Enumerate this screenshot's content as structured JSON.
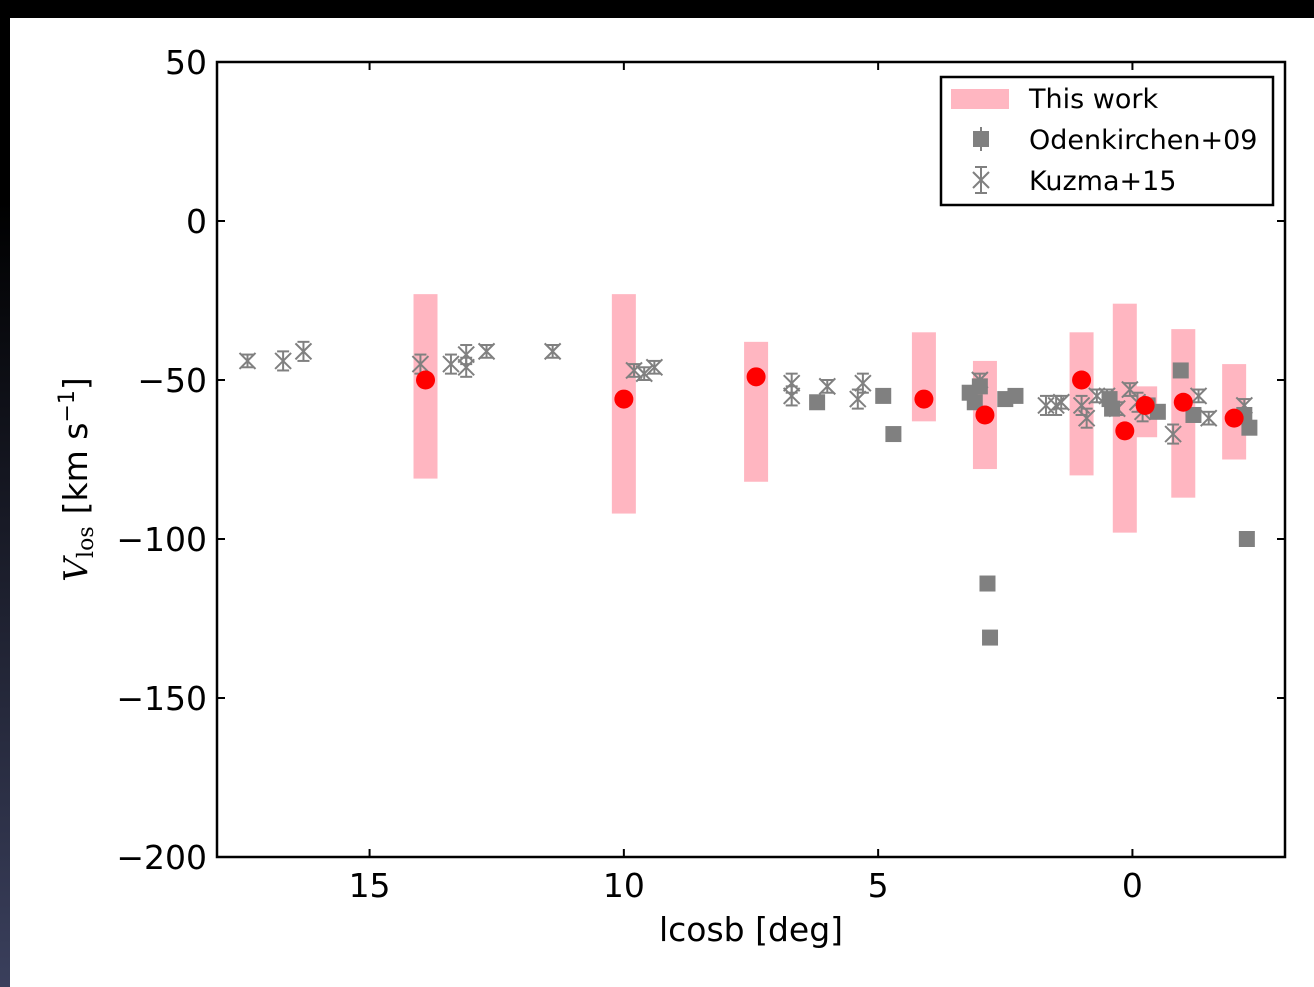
{
  "chart_data": {
    "type": "scatter",
    "title": "",
    "xlabel": "lcosb [deg]",
    "ylabel_main": "V",
    "ylabel_sub": "los",
    "ylabel_units": "[km s",
    "ylabel_exp": "−1",
    "ylabel_close": "]",
    "xlim": [
      18,
      -3
    ],
    "ylim": [
      -200,
      50
    ],
    "x_ticks": [
      {
        "value": 15,
        "label": "15"
      },
      {
        "value": 10,
        "label": "10"
      },
      {
        "value": 5,
        "label": "5"
      },
      {
        "value": 0,
        "label": "0"
      }
    ],
    "y_ticks": [
      {
        "value": 50,
        "label": "50"
      },
      {
        "value": 0,
        "label": "0"
      },
      {
        "value": -50,
        "label": "−50"
      },
      {
        "value": -100,
        "label": "−100"
      },
      {
        "value": -150,
        "label": "−150"
      },
      {
        "value": -200,
        "label": "−200"
      }
    ],
    "grid": false,
    "legend_position": "top-right",
    "legend": [
      {
        "label": "This work",
        "marker": "band",
        "color": "#ffb6c1"
      },
      {
        "label": "Odenkirchen+09",
        "marker": "square",
        "color": "#808080"
      },
      {
        "label": "Kuzma+15",
        "marker": "x-errorbar",
        "color": "#808080"
      }
    ],
    "series": [
      {
        "name": "This work",
        "marker": "circle-band",
        "color": "#ff0000",
        "band_color": "#ffb6c1",
        "points": [
          {
            "x": 13.9,
            "y": -50,
            "lo": -81,
            "hi": -23
          },
          {
            "x": 10.0,
            "y": -56,
            "lo": -92,
            "hi": -23
          },
          {
            "x": 7.4,
            "y": -49,
            "lo": -82,
            "hi": -38
          },
          {
            "x": 4.1,
            "y": -56,
            "lo": -63,
            "hi": -35
          },
          {
            "x": 2.9,
            "y": -61,
            "lo": -78,
            "hi": -44
          },
          {
            "x": 1.0,
            "y": -50,
            "lo": -80,
            "hi": -35
          },
          {
            "x": 0.15,
            "y": -66,
            "lo": -98,
            "hi": -26
          },
          {
            "x": -0.25,
            "y": -58,
            "lo": -68,
            "hi": -52
          },
          {
            "x": -1.0,
            "y": -57,
            "lo": -87,
            "hi": -34
          },
          {
            "x": -2.0,
            "y": -62,
            "lo": -75,
            "hi": -45
          }
        ]
      },
      {
        "name": "Odenkirchen+09",
        "marker": "square",
        "color": "#808080",
        "points": [
          {
            "x": 6.2,
            "y": -57
          },
          {
            "x": 4.9,
            "y": -55
          },
          {
            "x": 4.7,
            "y": -67
          },
          {
            "x": 3.2,
            "y": -54
          },
          {
            "x": 3.1,
            "y": -57
          },
          {
            "x": 3.0,
            "y": -52
          },
          {
            "x": 2.85,
            "y": -114
          },
          {
            "x": 2.8,
            "y": -131
          },
          {
            "x": 2.5,
            "y": -56
          },
          {
            "x": 2.3,
            "y": -55
          },
          {
            "x": 0.45,
            "y": -56
          },
          {
            "x": 0.4,
            "y": -59
          },
          {
            "x": -0.3,
            "y": -58
          },
          {
            "x": -0.5,
            "y": -60
          },
          {
            "x": -0.95,
            "y": -47
          },
          {
            "x": -1.2,
            "y": -61
          },
          {
            "x": -2.2,
            "y": -61
          },
          {
            "x": -2.3,
            "y": -65
          },
          {
            "x": -2.25,
            "y": -100
          }
        ]
      },
      {
        "name": "Kuzma+15",
        "marker": "x-errorbar",
        "color": "#808080",
        "points": [
          {
            "x": 17.4,
            "y": -44,
            "err": 2
          },
          {
            "x": 16.7,
            "y": -44,
            "err": 3
          },
          {
            "x": 16.3,
            "y": -41,
            "err": 3
          },
          {
            "x": 14.0,
            "y": -45,
            "err": 3
          },
          {
            "x": 13.4,
            "y": -45,
            "err": 3
          },
          {
            "x": 13.1,
            "y": -42,
            "err": 3
          },
          {
            "x": 13.1,
            "y": -46,
            "err": 3
          },
          {
            "x": 12.7,
            "y": -41,
            "err": 2
          },
          {
            "x": 11.4,
            "y": -41,
            "err": 2
          },
          {
            "x": 9.8,
            "y": -47,
            "err": 2
          },
          {
            "x": 9.6,
            "y": -48,
            "err": 2
          },
          {
            "x": 9.4,
            "y": -46,
            "err": 2
          },
          {
            "x": 6.7,
            "y": -51,
            "err": 3
          },
          {
            "x": 6.7,
            "y": -55,
            "err": 3
          },
          {
            "x": 6.0,
            "y": -52,
            "err": 2
          },
          {
            "x": 5.4,
            "y": -56,
            "err": 3
          },
          {
            "x": 5.3,
            "y": -51,
            "err": 3
          },
          {
            "x": 3.0,
            "y": -50,
            "err": 2
          },
          {
            "x": 1.7,
            "y": -58,
            "err": 3
          },
          {
            "x": 1.5,
            "y": -58,
            "err": 3
          },
          {
            "x": 1.4,
            "y": -57,
            "err": 2
          },
          {
            "x": 1.0,
            "y": -58,
            "err": 3
          },
          {
            "x": 0.9,
            "y": -62,
            "err": 3
          },
          {
            "x": 0.7,
            "y": -55,
            "err": 2
          },
          {
            "x": 0.5,
            "y": -55,
            "err": 2
          },
          {
            "x": 0.3,
            "y": -59,
            "err": 2
          },
          {
            "x": 0.05,
            "y": -53,
            "err": 2
          },
          {
            "x": -0.1,
            "y": -57,
            "err": 3
          },
          {
            "x": -0.2,
            "y": -60,
            "err": 3
          },
          {
            "x": -0.8,
            "y": -67,
            "err": 3
          },
          {
            "x": -1.3,
            "y": -55,
            "err": 2
          },
          {
            "x": -1.5,
            "y": -62,
            "err": 2
          },
          {
            "x": -2.2,
            "y": -58,
            "err": 2
          }
        ]
      }
    ]
  }
}
